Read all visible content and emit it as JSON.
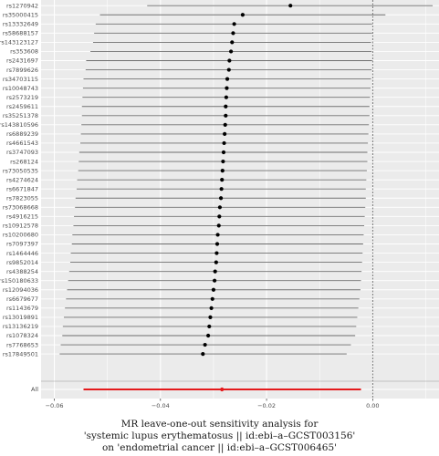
{
  "chart_data": {
    "type": "forest",
    "title": "",
    "caption": [
      "MR leave-one-out sensitivity analysis for",
      "'systemic lupus erythematosus || id:ebi–a–GCST003156'",
      "on 'endometrial cancer || id:ebi–a–GCST006465'"
    ],
    "xlabel": "",
    "ylabel": "",
    "xlim": [
      -0.0625,
      0.0125
    ],
    "xticks": [
      -0.06,
      -0.04,
      -0.02,
      0.0
    ],
    "xtick_labels": [
      "−0.06",
      "−0.04",
      "−0.02",
      "0.00"
    ],
    "grid": true,
    "reference_line": 0.0,
    "colors": {
      "panel": "#ebebeb",
      "grid": "#ffffff",
      "point": "#000000",
      "ci": "#6e6e6e",
      "pooled": "#e41a1c"
    },
    "snps": [
      {
        "label": "rs1270942",
        "estimate": -0.0155,
        "lower": -0.0425,
        "upper": 0.0113
      },
      {
        "label": "rs35000415",
        "estimate": -0.0245,
        "lower": -0.0514,
        "upper": 0.0024
      },
      {
        "label": "rs13332649",
        "estimate": -0.0261,
        "lower": -0.0522,
        "upper": -0.0001
      },
      {
        "label": "rs58688157",
        "estimate": -0.0263,
        "lower": -0.0525,
        "upper": -0.0001
      },
      {
        "label": "rs143123127",
        "estimate": -0.0265,
        "lower": -0.0527,
        "upper": -0.0003
      },
      {
        "label": "rs353608",
        "estimate": -0.0267,
        "lower": -0.0532,
        "upper": -0.0002
      },
      {
        "label": "rs2431697",
        "estimate": -0.027,
        "lower": -0.054,
        "upper": -0.0001
      },
      {
        "label": "rs7899626",
        "estimate": -0.0271,
        "lower": -0.0541,
        "upper": -0.0002
      },
      {
        "label": "rs34703115",
        "estimate": -0.0274,
        "lower": -0.0545,
        "upper": -0.0003
      },
      {
        "label": "rs10048743",
        "estimate": -0.0275,
        "lower": -0.0546,
        "upper": -0.0004
      },
      {
        "label": "rs2573219",
        "estimate": -0.0276,
        "lower": -0.0547,
        "upper": -0.0005
      },
      {
        "label": "rs2459611",
        "estimate": -0.0277,
        "lower": -0.0548,
        "upper": -0.0006
      },
      {
        "label": "rs35251378",
        "estimate": -0.0277,
        "lower": -0.0548,
        "upper": -0.0006
      },
      {
        "label": "rs143810596",
        "estimate": -0.0278,
        "lower": -0.0549,
        "upper": -0.0007
      },
      {
        "label": "rs6889239",
        "estimate": -0.0279,
        "lower": -0.055,
        "upper": -0.0008
      },
      {
        "label": "rs4661543",
        "estimate": -0.028,
        "lower": -0.0551,
        "upper": -0.0009
      },
      {
        "label": "rs3747093",
        "estimate": -0.0281,
        "lower": -0.0553,
        "upper": -0.001
      },
      {
        "label": "rs268124",
        "estimate": -0.0282,
        "lower": -0.0554,
        "upper": -0.001
      },
      {
        "label": "rs73050535",
        "estimate": -0.0283,
        "lower": -0.0555,
        "upper": -0.0011
      },
      {
        "label": "rs4274624",
        "estimate": -0.0284,
        "lower": -0.0557,
        "upper": -0.0012
      },
      {
        "label": "rs6671847",
        "estimate": -0.0285,
        "lower": -0.0558,
        "upper": -0.0013
      },
      {
        "label": "rs7823055",
        "estimate": -0.0286,
        "lower": -0.056,
        "upper": -0.0013
      },
      {
        "label": "rs73068668",
        "estimate": -0.0288,
        "lower": -0.0561,
        "upper": -0.0014
      },
      {
        "label": "rs4916215",
        "estimate": -0.0289,
        "lower": -0.0563,
        "upper": -0.0015
      },
      {
        "label": "rs10912578",
        "estimate": -0.029,
        "lower": -0.0564,
        "upper": -0.0016
      },
      {
        "label": "rs10200680",
        "estimate": -0.0292,
        "lower": -0.0566,
        "upper": -0.0017
      },
      {
        "label": "rs7097397",
        "estimate": -0.0293,
        "lower": -0.0567,
        "upper": -0.0018
      },
      {
        "label": "rs1464446",
        "estimate": -0.0294,
        "lower": -0.0569,
        "upper": -0.0019
      },
      {
        "label": "rs9852014",
        "estimate": -0.0295,
        "lower": -0.057,
        "upper": -0.002
      },
      {
        "label": "rs4388254",
        "estimate": -0.0297,
        "lower": -0.0572,
        "upper": -0.0021
      },
      {
        "label": "rs150180633",
        "estimate": -0.0298,
        "lower": -0.0574,
        "upper": -0.0022
      },
      {
        "label": "rs12094036",
        "estimate": -0.03,
        "lower": -0.0576,
        "upper": -0.0023
      },
      {
        "label": "rs6679677",
        "estimate": -0.0302,
        "lower": -0.0578,
        "upper": -0.0025
      },
      {
        "label": "rs1143679",
        "estimate": -0.0304,
        "lower": -0.058,
        "upper": -0.0027
      },
      {
        "label": "rs13019891",
        "estimate": -0.0306,
        "lower": -0.0582,
        "upper": -0.0029
      },
      {
        "label": "rs13136219",
        "estimate": -0.0308,
        "lower": -0.0584,
        "upper": -0.0031
      },
      {
        "label": "rs1078324",
        "estimate": -0.031,
        "lower": -0.0585,
        "upper": -0.0033
      },
      {
        "label": "rs7768653",
        "estimate": -0.0316,
        "lower": -0.0588,
        "upper": -0.0041
      },
      {
        "label": "rs17849501",
        "estimate": -0.032,
        "lower": -0.059,
        "upper": -0.0049
      }
    ],
    "pooled": {
      "label": "All",
      "estimate": -0.0284,
      "lower": -0.0545,
      "upper": -0.0022
    }
  }
}
